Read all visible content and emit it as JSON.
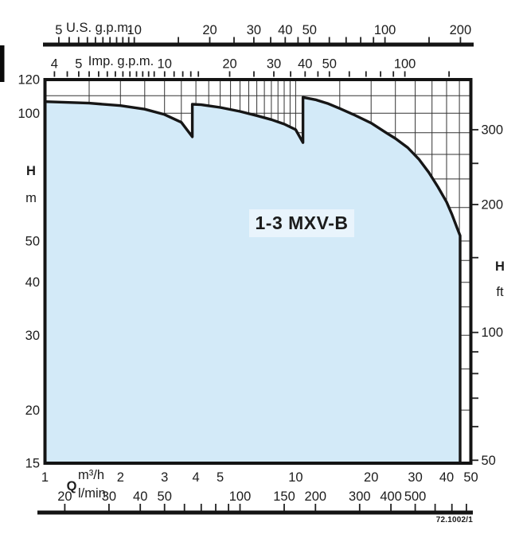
{
  "labels": {
    "us_gpm_unit": "U.S. g.p.m.",
    "imp_gpm_unit": "Imp. g.p.m.",
    "flow_symbol": "Q",
    "flow_unit_m3h": "m³/h",
    "flow_unit_lmin": "l/min",
    "head_symbol": "H",
    "head_unit_m": "m",
    "head_unit_ft": "ft",
    "series_label": "1-3 MXV-B",
    "diagram_code": "72.1002/1"
  },
  "colors": {
    "envelope_fill": "#d3eaf8",
    "series_label_bg": "#e9f4fc",
    "curve": "#161616",
    "grid": "#333333",
    "axis": "#141414"
  },
  "chart_data": {
    "type": "area",
    "title": "1-3 MXV-B",
    "x_scale": "log",
    "y_scale": "log",
    "x_axis_label": "Q",
    "y_axis_label": "H",
    "x_range_m3h": [
      1,
      50
    ],
    "y_range_m": [
      15,
      120
    ],
    "grid": {
      "x_m3h": [
        1,
        1.5,
        2,
        2.5,
        3,
        3.5,
        4,
        4.5,
        5,
        5.5,
        6,
        6.5,
        7,
        7.5,
        8,
        8.5,
        9,
        9.5,
        10,
        15,
        20,
        25,
        30,
        35,
        40,
        45,
        50
      ],
      "y_m": [
        15,
        20,
        25,
        30,
        35,
        40,
        45,
        50,
        60,
        70,
        80,
        90,
        100,
        110,
        120
      ]
    },
    "axes": {
      "us_gpm": {
        "per_m3h": 4.4029,
        "ticks": [
          5,
          5.5,
          6,
          6.5,
          7,
          7.5,
          8,
          8.5,
          9,
          9.5,
          10,
          15,
          20,
          25,
          30,
          35,
          40,
          45,
          50,
          60,
          70,
          80,
          90,
          100,
          150,
          200
        ],
        "labeled": [
          5,
          10,
          20,
          30,
          40,
          50,
          100,
          200
        ]
      },
      "imp_gpm": {
        "per_m3h": 3.6662,
        "ticks": [
          4,
          4.5,
          5,
          5.5,
          6,
          6.5,
          7,
          7.5,
          8,
          8.5,
          9,
          9.5,
          10,
          11,
          12,
          13,
          14,
          15,
          20,
          25,
          30,
          35,
          40,
          45,
          50,
          60,
          70,
          80,
          90,
          100,
          150
        ],
        "labeled": [
          4,
          5,
          10,
          20,
          30,
          40,
          50,
          100
        ]
      },
      "m3h": {
        "labeled": [
          1,
          2,
          3,
          4,
          5,
          10,
          20,
          30,
          40,
          50
        ]
      },
      "lmin": {
        "per_m3h": 16.6667,
        "ticks": [
          20,
          30,
          40,
          50,
          60,
          70,
          80,
          90,
          100,
          150,
          200,
          300,
          400,
          500,
          600,
          700,
          800
        ],
        "labeled": [
          20,
          30,
          40,
          50,
          100,
          150,
          200,
          300,
          400,
          500
        ]
      },
      "head_m": {
        "labeled": [
          120,
          100,
          50,
          40,
          30,
          20,
          15
        ]
      },
      "head_ft": {
        "per_m": 3.2808,
        "ticks": [
          50,
          60,
          70,
          80,
          90,
          100,
          150,
          200,
          250,
          300
        ],
        "labeled": [
          300,
          200,
          100,
          50
        ]
      }
    },
    "envelope_m3h_m": [
      [
        1,
        106.5
      ],
      [
        1.5,
        105.6
      ],
      [
        2,
        104.2
      ],
      [
        2.5,
        102.2
      ],
      [
        3,
        99.3
      ],
      [
        3.5,
        95.2
      ],
      [
        3.87,
        88.0
      ],
      [
        3.87,
        105.0
      ],
      [
        4.2,
        104.7
      ],
      [
        5,
        103.2
      ],
      [
        6,
        101.0
      ],
      [
        7,
        98.7
      ],
      [
        8,
        96.6
      ],
      [
        9,
        94.3
      ],
      [
        10,
        91.5
      ],
      [
        10.7,
        85.3
      ],
      [
        10.7,
        109.0
      ],
      [
        12,
        107.6
      ],
      [
        13.5,
        105.3
      ],
      [
        15,
        102.6
      ],
      [
        17,
        99.3
      ],
      [
        20,
        94.8
      ],
      [
        23,
        89.9
      ],
      [
        25,
        87.2
      ],
      [
        28,
        83.0
      ],
      [
        31,
        78.0
      ],
      [
        34,
        72.5
      ],
      [
        37,
        67.0
      ],
      [
        40,
        61.8
      ],
      [
        42,
        57.8
      ],
      [
        44,
        53.8
      ],
      [
        45.3,
        51.5
      ],
      [
        45.3,
        15
      ]
    ]
  }
}
